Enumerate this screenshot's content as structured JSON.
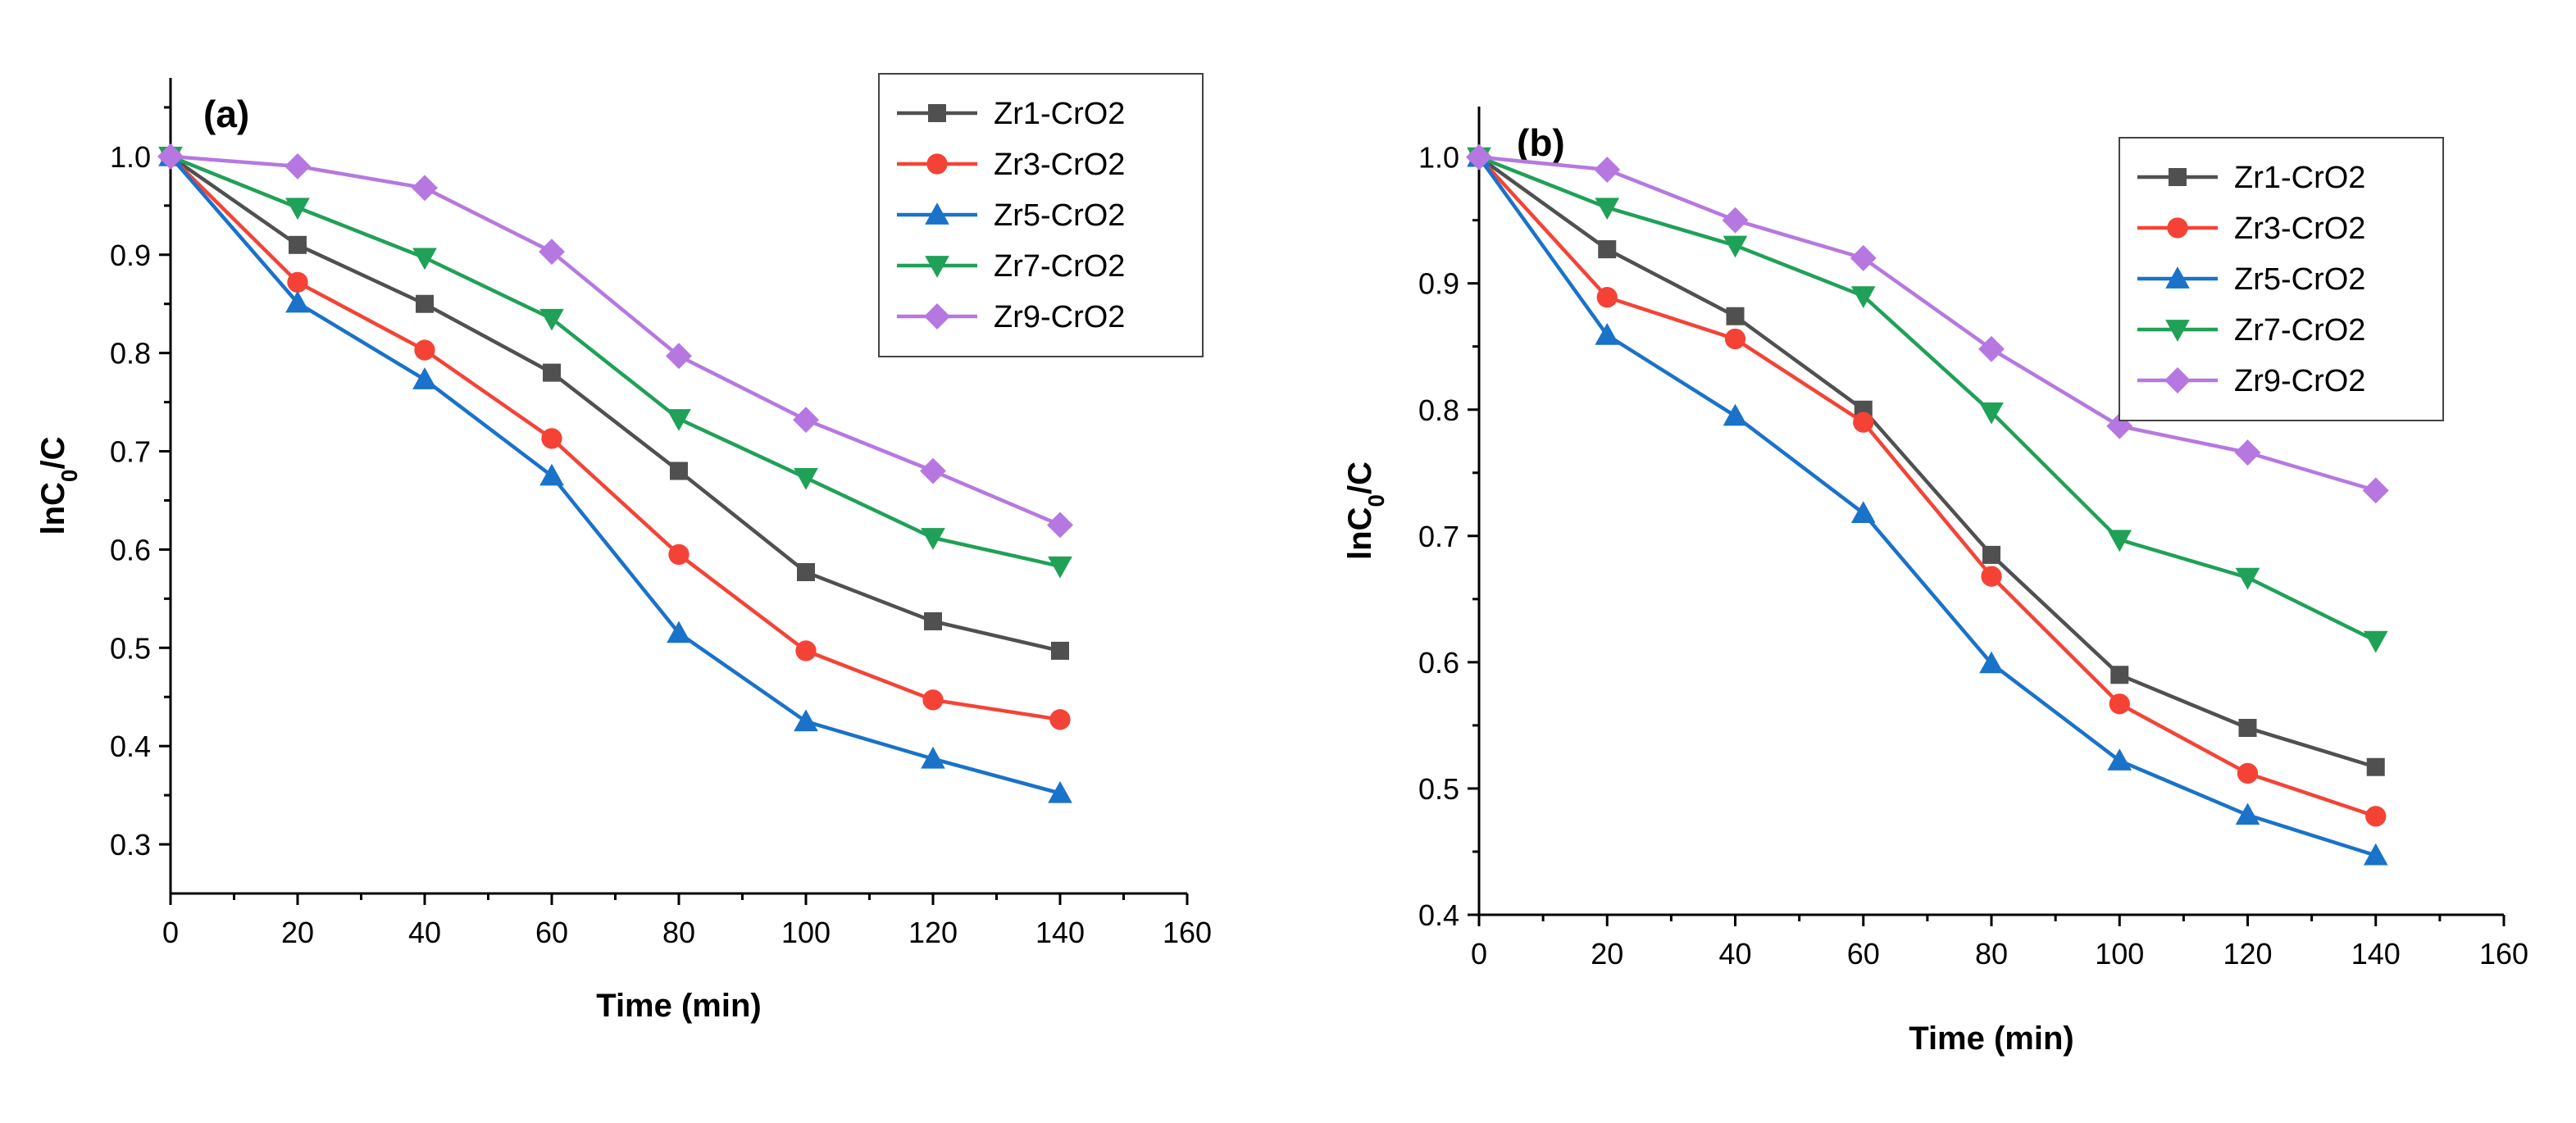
{
  "chart_data": [
    {
      "type": "line",
      "panel_label": "(a)",
      "xlabel": "Time (min)",
      "ylabel_main": "lnC",
      "ylabel_sub": "0",
      "ylabel_tail": "/C",
      "xlim": [
        0,
        160
      ],
      "ylim": [
        0.25,
        1.08
      ],
      "xticks": [
        0,
        20,
        40,
        60,
        80,
        100,
        120,
        140,
        160
      ],
      "yticks": [
        0.3,
        0.4,
        0.5,
        0.6,
        0.7,
        0.8,
        0.9,
        1.0
      ],
      "ytick_labels": [
        "0.3",
        "0.4",
        "0.5",
        "0.6",
        "0.7",
        "0.8",
        "0.9",
        "1.0"
      ],
      "x": [
        0,
        20,
        40,
        60,
        80,
        100,
        120,
        140
      ],
      "legend_position": "top-right",
      "series": [
        {
          "name": "Zr1-CrO2",
          "color": "#505050",
          "marker": "square",
          "values": [
            1.0,
            0.91,
            0.85,
            0.78,
            0.68,
            0.577,
            0.527,
            0.497
          ]
        },
        {
          "name": "Zr3-CrO2",
          "color": "#f44336",
          "marker": "circle",
          "values": [
            1.0,
            0.872,
            0.803,
            0.713,
            0.595,
            0.497,
            0.447,
            0.427
          ]
        },
        {
          "name": "Zr5-CrO2",
          "color": "#1a72c9",
          "marker": "triangle-up",
          "values": [
            1.0,
            0.851,
            0.773,
            0.675,
            0.515,
            0.425,
            0.387,
            0.352
          ]
        },
        {
          "name": "Zr7-CrO2",
          "color": "#1fa157",
          "marker": "triangle-down",
          "values": [
            1.0,
            0.948,
            0.897,
            0.835,
            0.733,
            0.673,
            0.612,
            0.583
          ]
        },
        {
          "name": "Zr9-CrO2",
          "color": "#b678e0",
          "marker": "diamond",
          "values": [
            1.0,
            0.99,
            0.968,
            0.903,
            0.797,
            0.732,
            0.68,
            0.625
          ]
        }
      ]
    },
    {
      "type": "line",
      "panel_label": "(b)",
      "xlabel": "Time (min)",
      "ylabel_main": "lnC",
      "ylabel_sub": "0",
      "ylabel_tail": "/C",
      "xlim": [
        0,
        160
      ],
      "ylim": [
        0.4,
        1.04
      ],
      "xticks": [
        0,
        20,
        40,
        60,
        80,
        100,
        120,
        140,
        160
      ],
      "yticks": [
        0.4,
        0.5,
        0.6,
        0.7,
        0.8,
        0.9,
        1.0
      ],
      "ytick_labels": [
        "0.4",
        "0.5",
        "0.6",
        "0.7",
        "0.8",
        "0.9",
        "1.0"
      ],
      "x": [
        0,
        20,
        40,
        60,
        80,
        100,
        120,
        140
      ],
      "legend_position": "top-right",
      "series": [
        {
          "name": "Zr1-CrO2",
          "color": "#505050",
          "marker": "square",
          "values": [
            1.0,
            0.927,
            0.874,
            0.8,
            0.685,
            0.59,
            0.548,
            0.517
          ]
        },
        {
          "name": "Zr3-CrO2",
          "color": "#f44336",
          "marker": "circle",
          "values": [
            1.0,
            0.889,
            0.856,
            0.79,
            0.668,
            0.567,
            0.512,
            0.478
          ]
        },
        {
          "name": "Zr5-CrO2",
          "color": "#1a72c9",
          "marker": "triangle-up",
          "values": [
            1.0,
            0.859,
            0.795,
            0.718,
            0.599,
            0.522,
            0.479,
            0.447
          ]
        },
        {
          "name": "Zr7-CrO2",
          "color": "#1fa157",
          "marker": "triangle-down",
          "values": [
            1.0,
            0.96,
            0.93,
            0.89,
            0.798,
            0.697,
            0.667,
            0.617
          ]
        },
        {
          "name": "Zr9-CrO2",
          "color": "#b678e0",
          "marker": "diamond",
          "values": [
            1.0,
            0.99,
            0.95,
            0.92,
            0.848,
            0.787,
            0.766,
            0.736
          ]
        }
      ]
    }
  ]
}
